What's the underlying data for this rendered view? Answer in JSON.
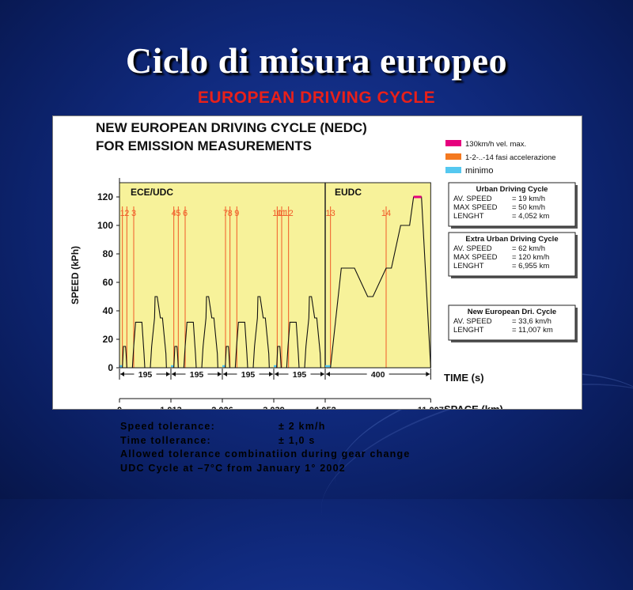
{
  "slide": {
    "title": "Ciclo di misura europeo",
    "subtitle": "EUROPEAN DRIVING CYCLE"
  },
  "colors": {
    "background": "#102a7e",
    "subtitle": "#e8201a",
    "plot_fill": "#f7f29a",
    "marker_line": "#f05a28",
    "max_speed_marker": "#e6007e",
    "acceleration_marker": "#f47920",
    "minimum_marker": "#55c8f0"
  },
  "chart_data": {
    "type": "line",
    "title_line1": "NEW EUROPEAN DRIVING CYCLE  (NEDC)",
    "title_line2": "FOR EMISSION MEASUREMENTS",
    "ylabel": "SPEED (kPh)",
    "ylim": [
      0,
      130
    ],
    "yticks": [
      0,
      20,
      40,
      60,
      80,
      100,
      120
    ],
    "xlim": [
      0,
      1200
    ],
    "grid": false,
    "legend_position": "top-right",
    "legend": [
      {
        "label": "130km/h vel. max.",
        "color": "#e6007e"
      },
      {
        "label": "1-2-..-14 fasi accelerazione",
        "color": "#f47920"
      },
      {
        "label": "minimo",
        "color": "#55c8f0"
      }
    ],
    "sections": [
      {
        "label": "ECE/UDC",
        "x_range": [
          0,
          780
        ]
      },
      {
        "label": "EUDC",
        "x_range": [
          780,
          1180
        ]
      }
    ],
    "series": [
      {
        "x": [
          0,
          11,
          15,
          23,
          25,
          28,
          49,
          54,
          61,
          85,
          93,
          96,
          117,
          122,
          133,
          135,
          143,
          155,
          163,
          176,
          178,
          185,
          188
        ],
        "y": [
          0,
          0,
          15,
          15,
          10,
          0,
          0,
          15,
          32,
          32,
          10,
          0,
          0,
          15,
          35,
          50,
          50,
          35,
          35,
          10,
          0,
          0,
          0
        ]
      }
    ],
    "eudc_profile": {
      "x": [
        780,
        800,
        841,
        891,
        941,
        961,
        1011,
        1031,
        1066,
        1100,
        1115,
        1130,
        1145,
        1180
      ],
      "y": [
        0,
        0,
        70,
        70,
        50,
        50,
        70,
        70,
        100,
        100,
        120,
        120,
        120,
        0
      ]
    },
    "phase_markers": {
      "labels": [
        "1",
        "2",
        "3",
        "4",
        "5",
        "6",
        "7",
        "8",
        "9",
        "10",
        "11",
        "12",
        "13",
        "14"
      ],
      "x": [
        11,
        28,
        54,
        206,
        223,
        249,
        402,
        419,
        445,
        598,
        615,
        641,
        800,
        1011
      ]
    },
    "time_segments": {
      "labels": [
        "195",
        "195",
        "195",
        "195",
        "400"
      ],
      "x": [
        0,
        195,
        390,
        585,
        780,
        1180
      ]
    },
    "space_axis": {
      "label": "SPACE (km)",
      "ticks": [
        "0",
        "1,013",
        "2,026",
        "3,039",
        "4,052",
        "11,007"
      ],
      "x": [
        0,
        195,
        390,
        585,
        780,
        1180
      ]
    },
    "time_label": "TIME (s)",
    "info_boxes": [
      {
        "title": "Urban Driving Cycle",
        "lines": [
          {
            "key": "AV. SPEED",
            "value": "= 19 km/h"
          },
          {
            "key": "MAX SPEED",
            "value": "= 50 km/h"
          },
          {
            "key": "LENGHT",
            "value": "= 4,052 km"
          }
        ]
      },
      {
        "title": "Extra Urban Driving Cycle",
        "lines": [
          {
            "key": "AV. SPEED",
            "value": "= 62 km/h"
          },
          {
            "key": "MAX SPEED",
            "value": "= 120 km/h"
          },
          {
            "key": "LENGHT",
            "value": "= 6,955 km"
          }
        ]
      },
      {
        "title": "New European Dri. Cycle",
        "lines": [
          {
            "key": "AV. SPEED",
            "value": "= 33,6 km/h"
          },
          {
            "key": "LENGHT",
            "value": "= 11,007 km"
          }
        ]
      }
    ]
  },
  "notes": [
    {
      "label": "Speed tolerance:",
      "value": "± 2 km/h"
    },
    {
      "label": "Time tollerance:",
      "value": "± 1,0 s"
    },
    {
      "label": "Allowed tolerance combinatiion during gear change",
      "value": ""
    },
    {
      "label": "UDC Cycle at  –7°C from January 1° 2002",
      "value": ""
    }
  ]
}
